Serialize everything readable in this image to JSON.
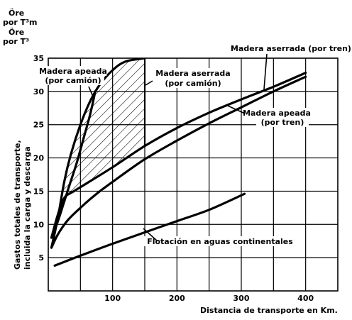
{
  "chart_data": {
    "type": "line",
    "unit_label_top_line1": "Öre",
    "unit_label_top_line2": "por T³m",
    "unit_label_bottom_line1": "Öre",
    "unit_label_bottom_line2": "por T³",
    "ylabel_line1": "Gastos totales de transporte,",
    "ylabel_line2": "incluida la carga y descarga",
    "xlabel": "Distancia de transporte en Km.",
    "xlim": [
      0,
      450
    ],
    "ylim": [
      0,
      35
    ],
    "x_ticks": [
      100,
      200,
      300,
      400
    ],
    "y_ticks": [
      5,
      10,
      15,
      20,
      25,
      30,
      35
    ],
    "grid": true,
    "hatched_region": {
      "x_from": 0,
      "x_to": 150
    },
    "series": [
      {
        "name_line1": "Madera apeada",
        "name_line2": "(por camión)",
        "points": [
          [
            5,
            8
          ],
          [
            15,
            10.5
          ],
          [
            25,
            13.5
          ],
          [
            35,
            16.5
          ],
          [
            45,
            19.5
          ],
          [
            55,
            23
          ],
          [
            65,
            26.5
          ],
          [
            73,
            30
          ]
        ]
      },
      {
        "name_line1": "Madera aserrada",
        "name_line2": "(por camión)",
        "points": [
          [
            5,
            6.5
          ],
          [
            15,
            11
          ],
          [
            25,
            16.5
          ],
          [
            35,
            20.5
          ],
          [
            50,
            25
          ],
          [
            65,
            28.5
          ],
          [
            80,
            31
          ],
          [
            100,
            33.2
          ],
          [
            120,
            34.5
          ],
          [
            150,
            35
          ]
        ]
      },
      {
        "name_line1": "Madera aserrada (por tren)",
        "name_line2": "",
        "points": [
          [
            5,
            8
          ],
          [
            15,
            11.5
          ],
          [
            25,
            14
          ],
          [
            40,
            15
          ],
          [
            60,
            16.2
          ],
          [
            100,
            18.6
          ],
          [
            150,
            21.8
          ],
          [
            200,
            24.5
          ],
          [
            250,
            26.8
          ],
          [
            300,
            28.8
          ],
          [
            350,
            30.7
          ],
          [
            400,
            32.8
          ]
        ]
      },
      {
        "name_line1": "Madera apeada",
        "name_line2": "(por tren)",
        "points": [
          [
            5,
            6.5
          ],
          [
            15,
            8.5
          ],
          [
            30,
            10.6
          ],
          [
            50,
            12.5
          ],
          [
            75,
            14.6
          ],
          [
            100,
            16.4
          ],
          [
            150,
            19.8
          ],
          [
            200,
            22.6
          ],
          [
            250,
            25.2
          ],
          [
            300,
            27.6
          ],
          [
            350,
            30
          ],
          [
            400,
            32.2
          ]
        ]
      },
      {
        "name_line1": "Flotación en aguas continentales",
        "name_line2": "",
        "points": [
          [
            10,
            3.8
          ],
          [
            50,
            5.3
          ],
          [
            100,
            7.1
          ],
          [
            150,
            8.8
          ],
          [
            200,
            10.5
          ],
          [
            250,
            12.2
          ],
          [
            305,
            14.6
          ]
        ]
      }
    ]
  }
}
